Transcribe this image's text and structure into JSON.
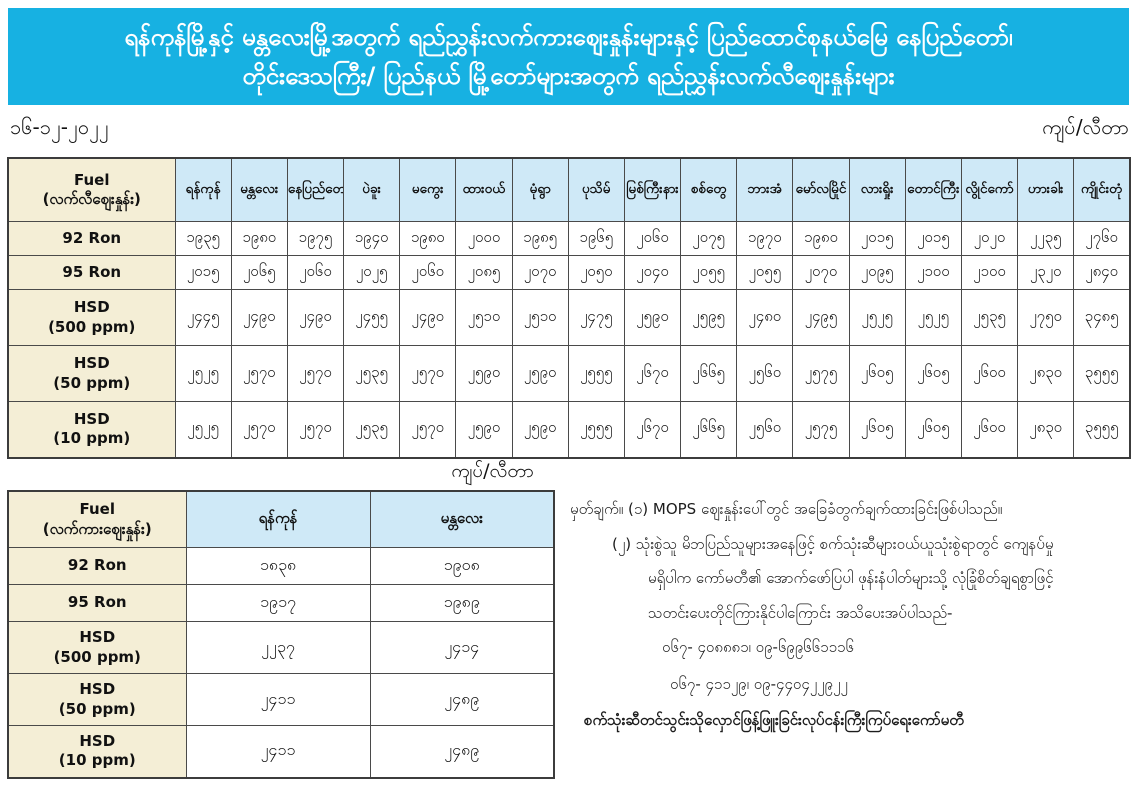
{
  "page": {
    "title_line1": "ရန်ကုန်မြို့နှင့် မန္တလေးမြို့အတွက် ရည်ညွှန်းလက်ကားဈေးနှုန်းများနှင့် ပြည်ထောင်စုနယ်မြေ နေပြည်တော်၊",
    "title_line2": "တိုင်းဒေသကြီး/ ပြည်နယ် မြို့တော်များအတွက် ရည်ညွှန်းလက်လီဈေးနှုန်းများ",
    "date": "၁၆-၁၂-၂၀၂၂",
    "unit_top": "ကျပ်/လီတာ",
    "unit_middle": "ကျပ်/လီတာ"
  },
  "retail_table": {
    "fuel_header": {
      "line1": "Fuel",
      "line2": "(လက်လီဈေးနှုန်း)"
    },
    "cities": [
      "ရန်ကုန်",
      "မန္တလေး",
      "နေပြည်တော်",
      "ပဲခူး",
      "မကွေး",
      "ထားဝယ်",
      "မုံရွာ",
      "ပုသိမ်",
      "မြစ်ကြီးနား",
      "စစ်တွေ",
      "ဘားအံ",
      "မော်လမြိုင်",
      "လားရှိုး",
      "တောင်ကြီး",
      "လွိုင်ကော်",
      "ဟားခါး",
      "ကျိုင်းတုံ"
    ],
    "rows": [
      {
        "label_lines": [
          "92 Ron"
        ],
        "values": [
          "၁၉၃၅",
          "၁၉၈၀",
          "၁၉၇၅",
          "၁၉၄၀",
          "၁၉၈၀",
          "၂၀၀၀",
          "၁၉၈၅",
          "၁၉၆၅",
          "၂၀၆၀",
          "၂၀၇၅",
          "၁၉၇၀",
          "၁၉၈၀",
          "၂၀၁၅",
          "၂၀၁၅",
          "၂၀၂၀",
          "၂၂၃၅",
          "၂၇၆၀"
        ]
      },
      {
        "label_lines": [
          "95 Ron"
        ],
        "values": [
          "၂၀၁၅",
          "၂၀၆၅",
          "၂၀၆၀",
          "၂၀၂၅",
          "၂၀၆၀",
          "၂၀၈၅",
          "၂၀၇၀",
          "၂၀၅၀",
          "၂၀၄၀",
          "၂၀၅၅",
          "၂၀၅၅",
          "၂၀၇၀",
          "၂၀၉၅",
          "၂၁၀၀",
          "၂၁၀၀",
          "၂၃၂၀",
          "၂၈၄၀"
        ]
      },
      {
        "label_lines": [
          "HSD",
          "(500 ppm)"
        ],
        "values": [
          "၂၄၄၅",
          "၂၄၉၀",
          "၂၄၉၀",
          "၂၄၅၅",
          "၂၄၉၀",
          "၂၅၁၀",
          "၂၅၁၀",
          "၂၄၇၅",
          "၂၅၉၀",
          "၂၅၉၅",
          "၂၄၈၀",
          "၂၄၉၅",
          "၂၅၂၅",
          "၂၅၂၅",
          "၂၅၃၅",
          "၂၇၅၀",
          "၃၄၈၅"
        ]
      },
      {
        "label_lines": [
          "HSD",
          "(50 ppm)"
        ],
        "values": [
          "၂၅၂၅",
          "၂၅၇၀",
          "၂၅၇၀",
          "၂၅၃၅",
          "၂၅၇၀",
          "၂၅၉၀",
          "၂၅၉၀",
          "၂၅၅၅",
          "၂၆၇၀",
          "၂၆၆၅",
          "၂၅၆၀",
          "၂၅၇၅",
          "၂၆၀၅",
          "၂၆၀၅",
          "၂၆၀၀",
          "၂၈၃၀",
          "၃၅၅၅"
        ]
      },
      {
        "label_lines": [
          "HSD",
          "(10 ppm)"
        ],
        "values": [
          "၂၅၂၅",
          "၂၅၇၀",
          "၂၅၇၀",
          "၂၅၃၅",
          "၂၅၇၀",
          "၂၅၉၀",
          "၂၅၉၀",
          "၂၅၅၅",
          "၂၆၇၀",
          "၂၆၆၅",
          "၂၅၆၀",
          "၂၅၇၅",
          "၂၆၀၅",
          "၂၆၀၅",
          "၂၆၀၀",
          "၂၈၃၀",
          "၃၅၅၅"
        ]
      }
    ]
  },
  "wholesale_table": {
    "fuel_header": {
      "line1": "Fuel",
      "line2": "(လက်ကားဈေးနှုန်း)"
    },
    "cities": [
      "ရန်ကုန်",
      "မန္တလေး"
    ],
    "rows": [
      {
        "label_lines": [
          "92 Ron"
        ],
        "values": [
          "၁၈၃၈",
          "၁၉၀၈"
        ]
      },
      {
        "label_lines": [
          "95 Ron"
        ],
        "values": [
          "၁၉၁၇",
          "၁၉၈၉"
        ]
      },
      {
        "label_lines": [
          "HSD",
          "(500 ppm)"
        ],
        "values": [
          "၂၂၃၇",
          "၂၄၁၄"
        ]
      },
      {
        "label_lines": [
          "HSD",
          "(50 ppm)"
        ],
        "values": [
          "၂၄၁၁",
          "၂၄၈၉"
        ]
      },
      {
        "label_lines": [
          "HSD",
          "(10 ppm)"
        ],
        "values": [
          "၂၄၁၁",
          "၂၄၈၉"
        ]
      }
    ]
  },
  "notes": {
    "lines": [
      "မှတ်ချက်။ (၁) MOPS ဈေးနှုန်းပေါ်တွင် အခြေခံတွက်ချက်ထားခြင်းဖြစ်ပါသည်။",
      "(၂) သုံးစွဲသူ မိဘပြည်သူများအနေဖြင့် စက်သုံးဆီများဝယ်ယူသုံးစွဲရာတွင် ကျေနပ်မှု",
      "မရှိပါက ကော်မတီ၏ အောက်ဖော်ပြပါ ဖုန်းနံပါတ်များသို့ လုံခြုံစိတ်ချရစွာဖြင့်",
      "သတင်းပေးတိုင်ကြားနိုင်ပါကြောင်း အသိပေးအပ်ပါသည်-",
      "၀၆၇- ၄၀၈၈၈၁၊ ၀၉-၆၉၉၆၆၁၁၁၆",
      "၀၆၇- ၄၁၁၂၉၊ ၀၉-၄၄၀၄၂၂၉၂၂",
      "စက်သုံးဆီတင်သွင်းသိုလှောင်ဖြန့်ဖြူးခြင်းလုပ်ငန်းကြီးကြပ်ရေးကော်မတီ"
    ]
  }
}
